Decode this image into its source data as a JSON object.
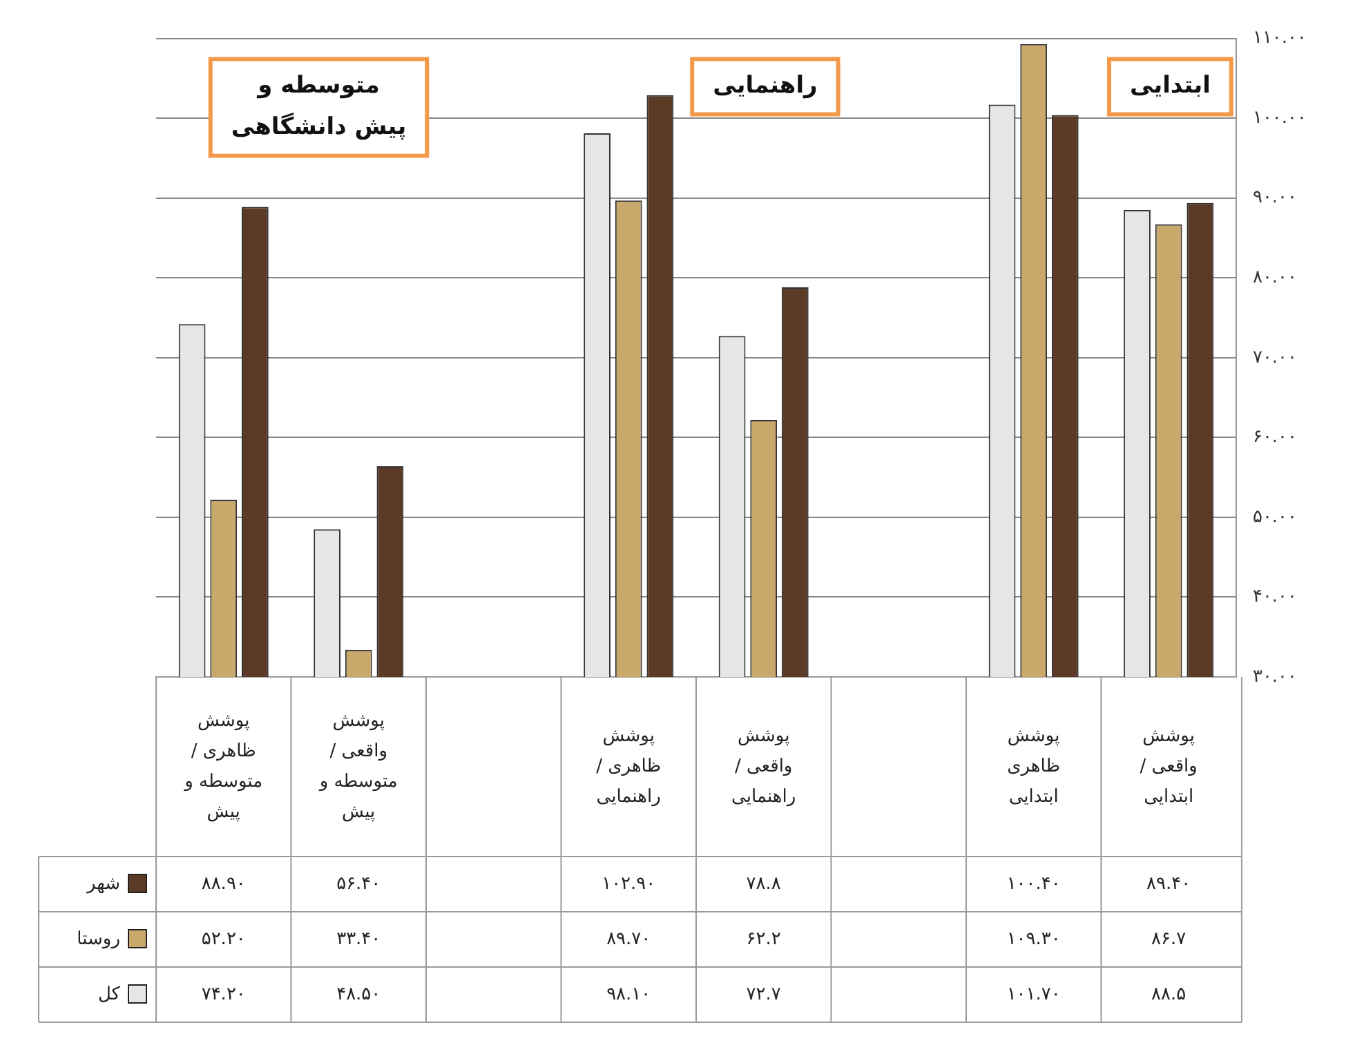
{
  "chart_data": {
    "type": "bar",
    "categories": [
      "پوشش ظاهری / متوسطه و پیش",
      "پوشش واقعی / متوسطه و پیش",
      null,
      "پوشش ظاهری / راهنمایی",
      "پوشش واقعی / راهنمایی",
      null,
      "پوشش ظاهری ابتدایی",
      "پوشش واقعی / ابتدایی"
    ],
    "series": [
      {
        "name": "کل",
        "color": "#e6e6e6",
        "values": [
          74.2,
          48.5,
          null,
          98.1,
          72.7,
          null,
          101.7,
          88.5
        ],
        "value_labels": [
          "۷۴.۲۰",
          "۴۸.۵۰",
          null,
          "۹۸.۱۰",
          "۷۲.۷",
          null,
          "۱۰۱.۷۰",
          "۸۸.۵"
        ]
      },
      {
        "name": "روستا",
        "color": "#c9a96b",
        "values": [
          52.2,
          33.4,
          null,
          89.7,
          62.2,
          null,
          109.3,
          86.7
        ],
        "value_labels": [
          "۵۲.۲۰",
          "۳۳.۴۰",
          null,
          "۸۹.۷۰",
          "۶۲.۲",
          null,
          "۱۰۹.۳۰",
          "۸۶.۷"
        ]
      },
      {
        "name": "شهر",
        "color": "#5b3a26",
        "values": [
          88.9,
          56.4,
          null,
          102.9,
          78.8,
          null,
          100.4,
          89.4
        ],
        "value_labels": [
          "۸۸.۹۰",
          "۵۶.۴۰",
          null,
          "۱۰۲.۹۰",
          "۷۸.۸",
          null,
          "۱۰۰.۴۰",
          "۸۹.۴۰"
        ]
      }
    ],
    "ylim": [
      30,
      110
    ],
    "yticks": [
      {
        "value": 30,
        "label": "۳۰.۰۰"
      },
      {
        "value": 40,
        "label": "۴۰.۰۰"
      },
      {
        "value": 50,
        "label": "۵۰.۰۰"
      },
      {
        "value": 60,
        "label": "۶۰.۰۰"
      },
      {
        "value": 70,
        "label": "۷۰.۰۰"
      },
      {
        "value": 80,
        "label": "۸۰.۰۰"
      },
      {
        "value": 90,
        "label": "۹۰.۰۰"
      },
      {
        "value": 100,
        "label": "۱۰۰.۰۰"
      },
      {
        "value": 110,
        "label": "۱۱۰.۰۰"
      }
    ],
    "grid": "y",
    "legend": "bottom left",
    "annotations": [
      "متوسطه و پیش دانشگاهی",
      "راهنمایی",
      "ابتدایی"
    ]
  }
}
